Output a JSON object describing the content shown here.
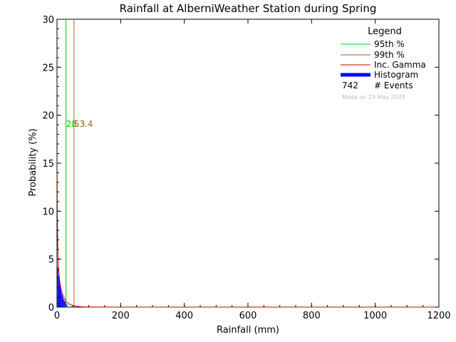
{
  "chart_data": {
    "type": "bar",
    "title": "Rainfall at AlberniWeather Station during Spring",
    "xlabel": "Rainfall (mm)",
    "ylabel": "Probability (%)",
    "xlim": [
      0,
      1200
    ],
    "ylim": [
      0,
      30
    ],
    "xticks": [
      "0",
      "200",
      "400",
      "600",
      "800",
      "1000",
      "1200"
    ],
    "yticks": [
      "0",
      "5",
      "10",
      "15",
      "20",
      "25",
      "30"
    ],
    "histogram": {
      "name": "Histogram",
      "color": "#0000ff",
      "bin_width": 2,
      "bin_starts": [
        0,
        2,
        4,
        6,
        8,
        10,
        12,
        14,
        16,
        18,
        20,
        22,
        24,
        26,
        28,
        30
      ],
      "values": [
        4.3,
        4.0,
        3.3,
        2.9,
        2.5,
        2.1,
        1.8,
        1.4,
        1.2,
        1.0,
        0.8,
        0.7,
        0.6,
        0.5,
        0.35,
        0.3
      ]
    },
    "gamma_curve": {
      "name": "Inc. Gamma",
      "color": "#cc0000",
      "x": [
        0.5,
        1,
        2,
        3,
        4,
        6,
        8,
        10,
        14,
        18,
        22,
        26,
        30,
        35,
        40,
        50,
        60,
        80,
        100,
        200,
        400,
        800,
        1200
      ],
      "y": [
        13.8,
        10.0,
        7.0,
        5.6,
        4.6,
        3.6,
        2.9,
        2.4,
        1.7,
        1.3,
        1.0,
        0.75,
        0.55,
        0.38,
        0.28,
        0.15,
        0.08,
        0.03,
        0.01,
        0,
        0,
        0,
        0
      ]
    },
    "percentiles": [
      {
        "name": "95th %",
        "value": 28.3,
        "label": "28.3",
        "color": "#00cc00"
      },
      {
        "name": "99th %",
        "value": 53.4,
        "label": "53.4",
        "color": "#aa6622"
      }
    ],
    "legend": {
      "title": "Legend",
      "placement": "top-right",
      "events_count": "742",
      "events_label": "# Events",
      "made_on": "Made on 29 May 2025"
    }
  }
}
